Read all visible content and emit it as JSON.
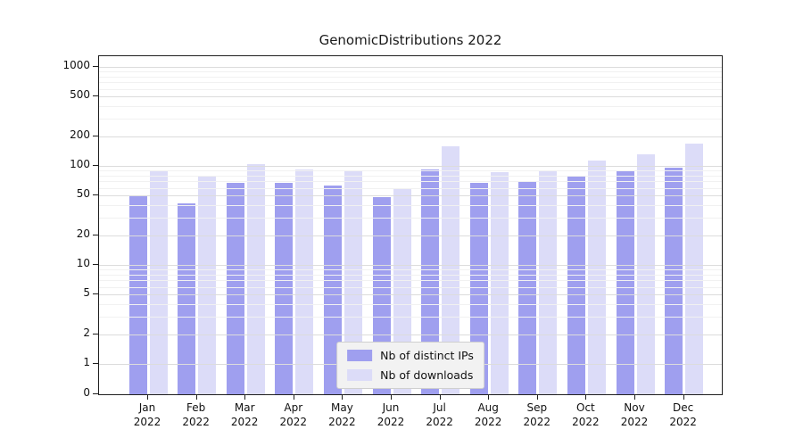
{
  "chart_data": {
    "type": "bar",
    "title": "GenomicDistributions 2022",
    "scale": "symlog",
    "grid": true,
    "legend_position": "lower center",
    "categories": [
      "Jan",
      "Feb",
      "Mar",
      "Apr",
      "May",
      "Jun",
      "Jul",
      "Aug",
      "Sep",
      "Oct",
      "Nov",
      "Dec"
    ],
    "x_sublabel": "2022",
    "yticks": [
      0,
      1,
      2,
      5,
      10,
      20,
      50,
      100,
      200,
      500,
      1000
    ],
    "ylim": [
      0,
      1300
    ],
    "series": [
      {
        "name": "Nb of distinct IPs",
        "color": "#9f9fef",
        "values": [
          50,
          42,
          68,
          67,
          64,
          48,
          92,
          67,
          70,
          78,
          91,
          96
        ]
      },
      {
        "name": "Nb of downloads",
        "color": "#dcdcf8",
        "values": [
          90,
          78,
          105,
          92,
          88,
          58,
          158,
          87,
          89,
          113,
          132,
          168
        ]
      }
    ]
  }
}
